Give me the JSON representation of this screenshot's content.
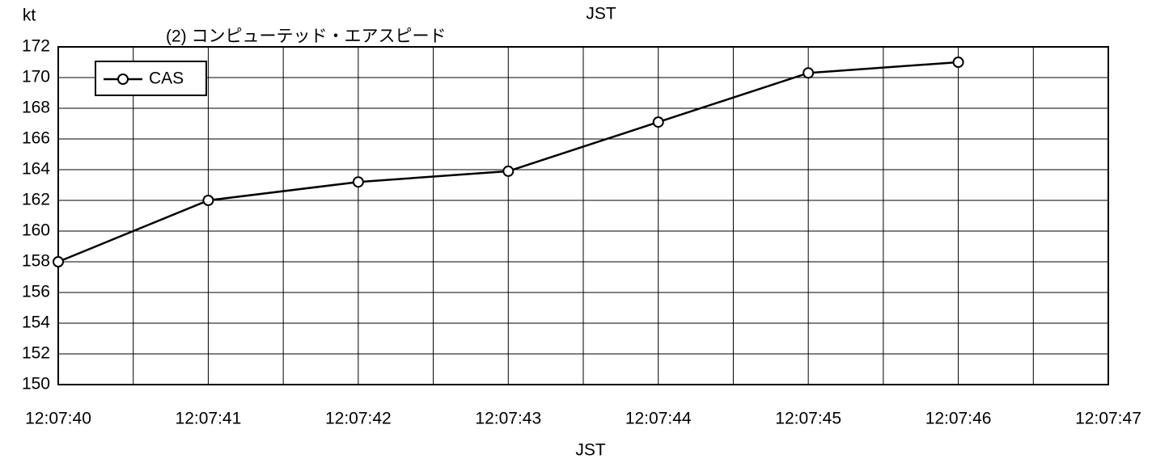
{
  "chart_data": {
    "type": "line",
    "title": "(2) コンピューテッド・エアスピード",
    "top_label": "JST",
    "y_label": "kt",
    "x_label": "JST",
    "x": [
      "12:07:40",
      "12:07:41",
      "12:07:42",
      "12:07:43",
      "12:07:44",
      "12:07:45",
      "12:07:46"
    ],
    "xticks": [
      "12:07:40",
      "12:07:41",
      "12:07:42",
      "12:07:43",
      "12:07:44",
      "12:07:45",
      "12:07:46",
      "12:07:47"
    ],
    "series": [
      {
        "name": "CAS",
        "color": "#000000",
        "values": [
          158,
          162,
          163.2,
          163.9,
          167.1,
          170.3,
          171.0
        ]
      }
    ],
    "ylim": [
      150,
      172
    ],
    "yticks": [
      150,
      152,
      154,
      156,
      158,
      160,
      162,
      164,
      166,
      168,
      170,
      172
    ],
    "grid": true,
    "legend": "upper left"
  }
}
